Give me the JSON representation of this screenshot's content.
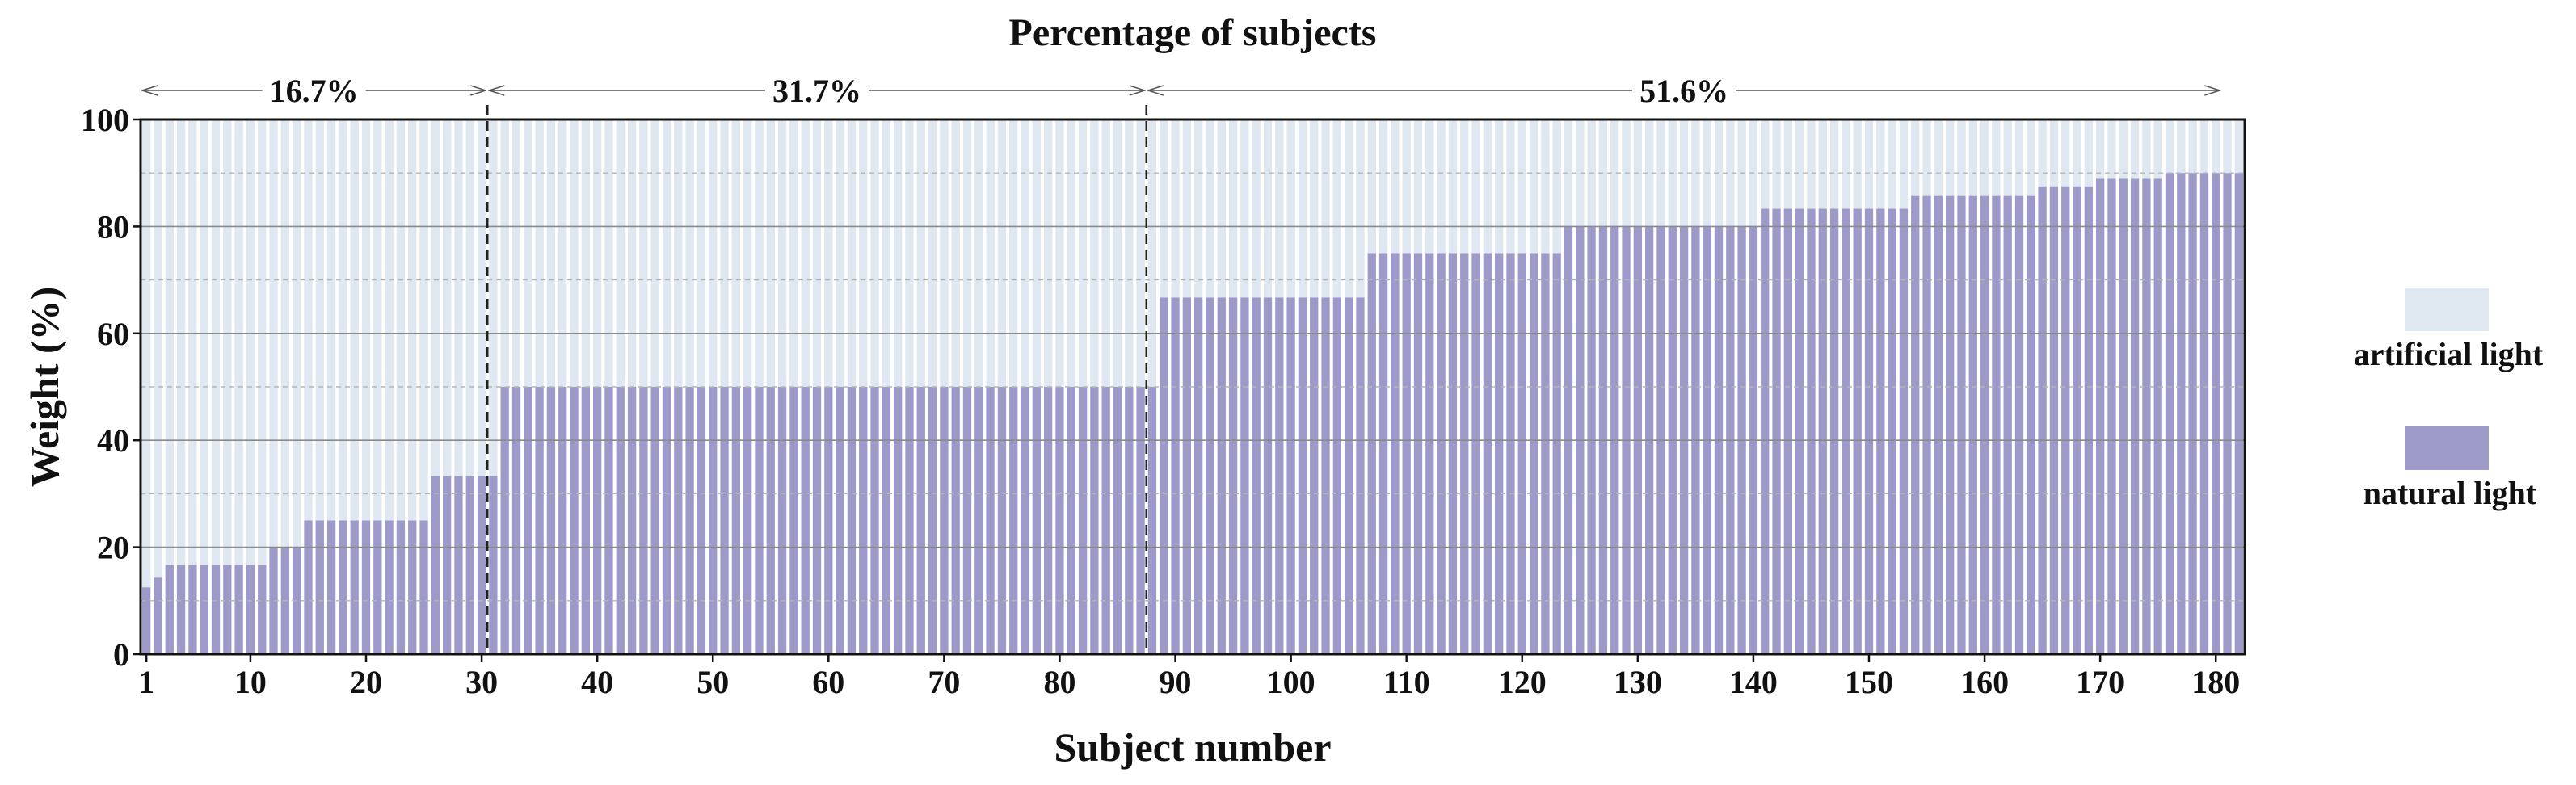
{
  "chart_data": {
    "type": "bar",
    "stacked": true,
    "title": "Percentage of subjects",
    "xlabel": "Subject number",
    "ylabel": "Weight (%)",
    "xlim": [
      1,
      180
    ],
    "ylim": [
      0,
      100
    ],
    "x_ticks": [
      1,
      10,
      20,
      30,
      40,
      50,
      60,
      70,
      80,
      90,
      100,
      110,
      120,
      130,
      140,
      150,
      160,
      170,
      180
    ],
    "y_ticks": [
      0,
      20,
      40,
      60,
      80,
      100
    ],
    "grid": "horizontal",
    "legend_position": "right",
    "colors": {
      "natural": "#9d9ac9",
      "artificial": "#dfe7f0"
    },
    "series": [
      {
        "name": "natural light",
        "values": [
          12.5,
          14.3,
          16.7,
          16.7,
          16.7,
          16.7,
          16.7,
          16.7,
          16.7,
          16.7,
          16.7,
          20,
          20,
          20,
          25,
          25,
          25,
          25,
          25,
          25,
          25,
          25,
          25,
          25,
          25,
          33.3,
          33.3,
          33.3,
          33.3,
          33.3,
          33.3,
          50,
          50,
          50,
          50,
          50,
          50,
          50,
          50,
          50,
          50,
          50,
          50,
          50,
          50,
          50,
          50,
          50,
          50,
          50,
          50,
          50,
          50,
          50,
          50,
          50,
          50,
          50,
          50,
          50,
          50,
          50,
          50,
          50,
          50,
          50,
          50,
          50,
          50,
          50,
          50,
          50,
          50,
          50,
          50,
          50,
          50,
          50,
          50,
          50,
          50,
          50,
          50,
          50,
          50,
          50,
          50,
          50,
          66.7,
          66.7,
          66.7,
          66.7,
          66.7,
          66.7,
          66.7,
          66.7,
          66.7,
          66.7,
          66.7,
          66.7,
          66.7,
          66.7,
          66.7,
          66.7,
          66.7,
          66.7,
          75,
          75,
          75,
          75,
          75,
          75,
          75,
          75,
          75,
          75,
          75,
          75,
          75,
          75,
          75,
          75,
          75,
          80,
          80,
          80,
          80,
          80,
          80,
          80,
          80,
          80,
          80,
          80,
          80,
          80,
          80,
          80,
          80,
          80,
          83.3,
          83.3,
          83.3,
          83.3,
          83.3,
          83.3,
          83.3,
          83.3,
          83.3,
          83.3,
          83.3,
          83.3,
          83.3,
          85.7,
          85.7,
          85.7,
          85.7,
          85.7,
          85.7,
          85.7,
          85.7,
          85.7,
          85.7,
          85.7,
          87.5,
          87.5,
          87.5,
          87.5,
          87.5,
          88.9,
          88.9,
          88.9,
          88.9,
          88.9,
          88.9,
          90,
          90,
          90,
          90,
          90,
          90,
          90
        ]
      },
      {
        "name": "artificial light",
        "values": "100 minus natural light"
      }
    ],
    "groups": [
      {
        "label": "16.7%",
        "from": 1,
        "to": 30
      },
      {
        "label": "31.7%",
        "from": 31,
        "to": 87
      },
      {
        "label": "51.6%",
        "from": 88,
        "to": 180
      }
    ]
  }
}
